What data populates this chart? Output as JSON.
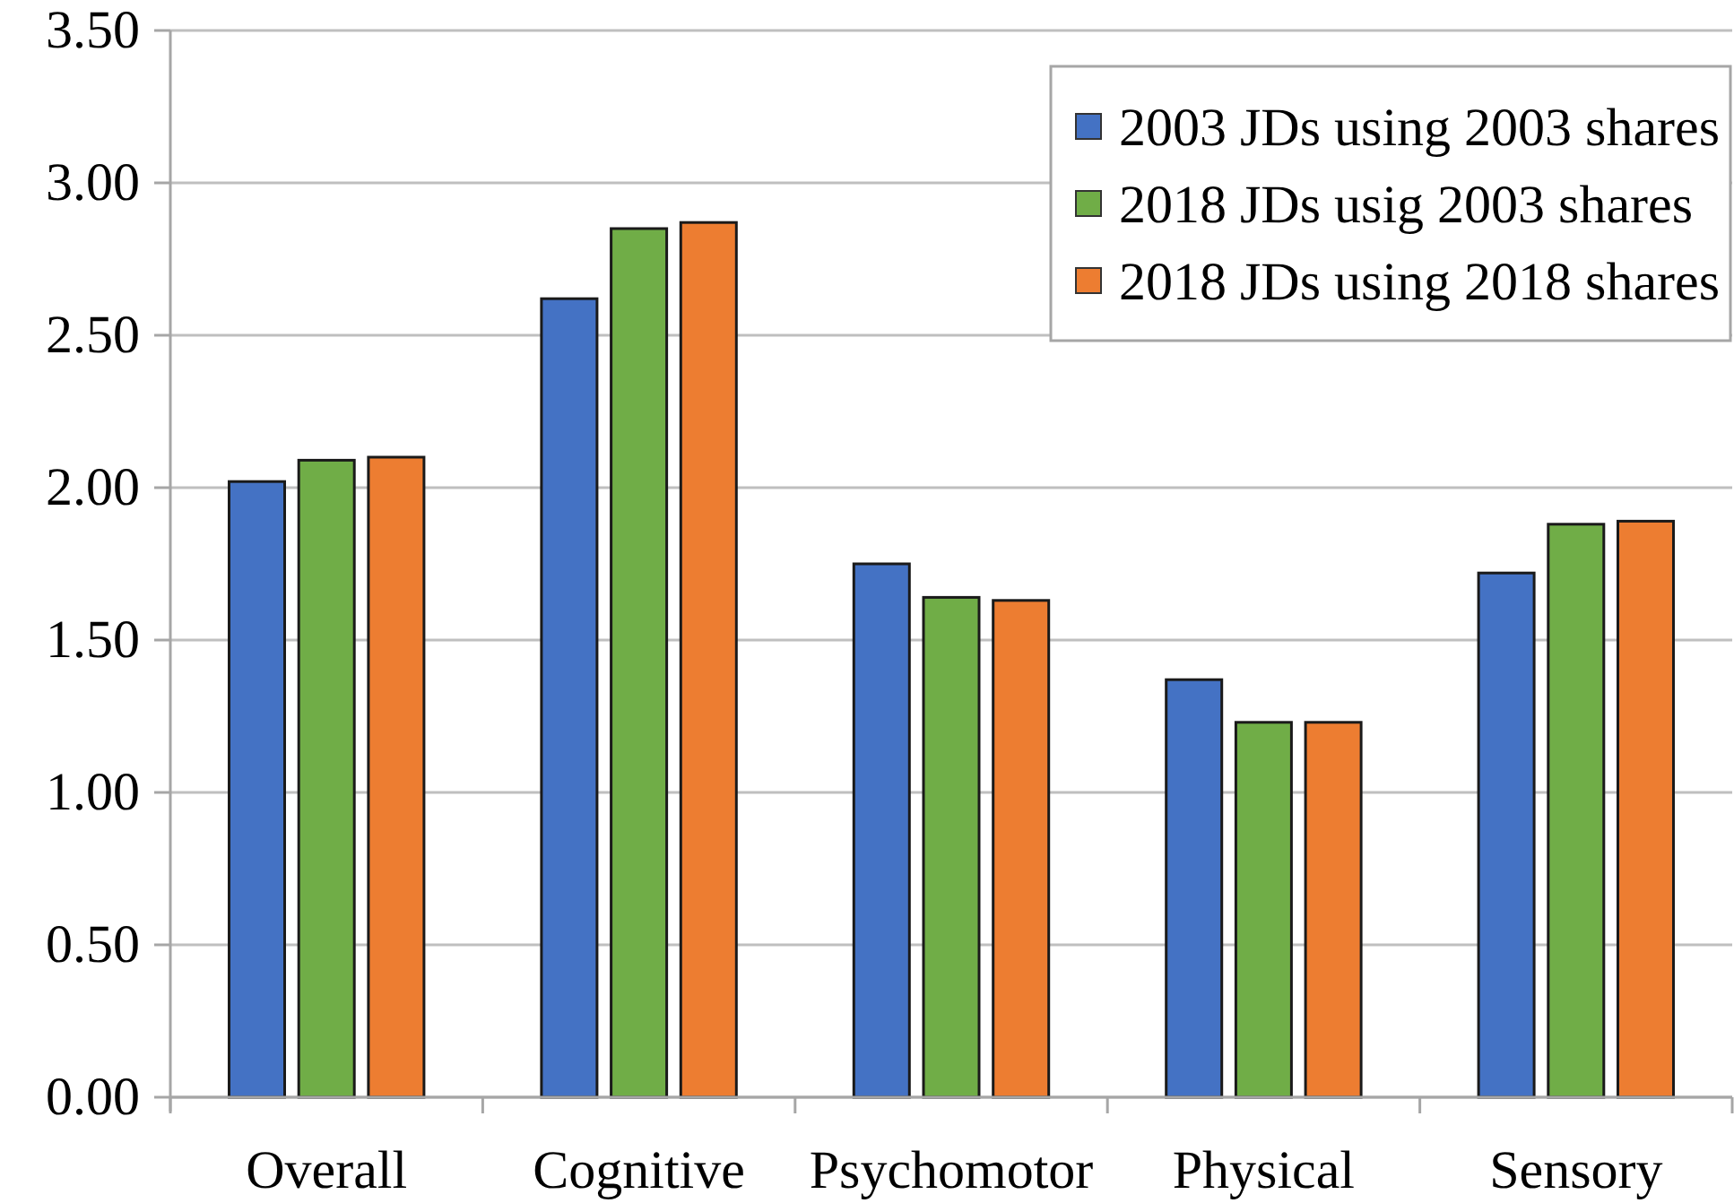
{
  "chart_data": {
    "type": "bar",
    "categories": [
      "Overall",
      "Cognitive",
      "Psychomotor",
      "Physical",
      "Sensory"
    ],
    "series": [
      {
        "name": "2003 JDs using 2003 shares",
        "color": "#4472c4",
        "values": [
          2.02,
          2.62,
          1.75,
          1.37,
          1.72
        ]
      },
      {
        "name": "2018 JDs usig 2003 shares",
        "color": "#70ad47",
        "values": [
          2.09,
          2.85,
          1.64,
          1.23,
          1.88
        ]
      },
      {
        "name": "2018 JDs using 2018 shares",
        "color": "#ed7d31",
        "values": [
          2.1,
          2.87,
          1.63,
          1.23,
          1.89
        ]
      }
    ],
    "ylim": [
      0,
      3.5
    ],
    "yticks": [
      {
        "value": 0,
        "label": "0.00"
      },
      {
        "value": 0.5,
        "label": "0.50"
      },
      {
        "value": 1,
        "label": "1.00"
      },
      {
        "value": 1.5,
        "label": "1.50"
      },
      {
        "value": 2,
        "label": "2.00"
      },
      {
        "value": 2.5,
        "label": "2.50"
      },
      {
        "value": 3,
        "label": "3.00"
      },
      {
        "value": 3.5,
        "label": "3.50"
      }
    ],
    "grid": "y",
    "legend": "top right"
  }
}
